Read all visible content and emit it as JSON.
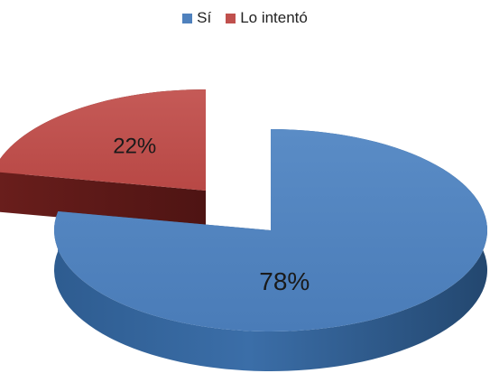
{
  "chart_data": {
    "type": "pie",
    "style": "3d-exploded",
    "categories": [
      "Sí",
      "Lo intentó"
    ],
    "values": [
      78,
      22
    ],
    "labels": [
      "78%",
      "22%"
    ],
    "colors": [
      "#4F81BD",
      "#C0504D"
    ],
    "legend": "top-center"
  }
}
